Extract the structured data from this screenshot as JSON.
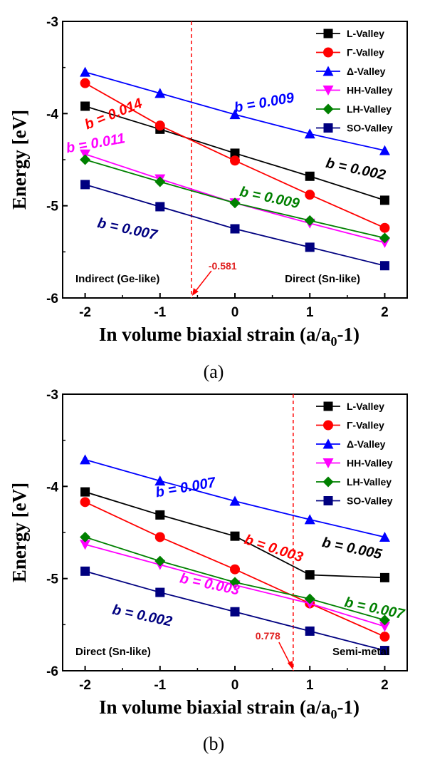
{
  "chart_data": [
    {
      "type": "line",
      "caption": "(a)",
      "ylabel": "Energy [eV]",
      "xlabel_main": "In volume biaxial strain (a/a",
      "xlabel_sub": "0",
      "xlabel_tail": "-1)",
      "xlim": [
        -2.3,
        2.3
      ],
      "ylim": [
        -6,
        -3
      ],
      "x_ticks": [
        -2,
        -1,
        0,
        1,
        2
      ],
      "x_tick_labels": [
        "-2",
        "-1",
        "0",
        "1",
        "2"
      ],
      "y_ticks": [
        -6,
        -5,
        -4,
        -3
      ],
      "y_tick_labels": [
        "-6",
        "-5",
        "-4",
        "-3"
      ],
      "legend_position": "top-right",
      "x": [
        -2,
        -1,
        0,
        1,
        2
      ],
      "series": [
        {
          "name": "L-Valley",
          "color": "#000000",
          "marker": "square",
          "values": [
            -3.92,
            -4.17,
            -4.43,
            -4.68,
            -4.94
          ]
        },
        {
          "name": "Γ-Valley",
          "color": "#ff0000",
          "marker": "circle",
          "values": [
            -3.67,
            -4.13,
            -4.51,
            -4.88,
            -5.24
          ]
        },
        {
          "name": "Δ-Valley",
          "color": "#0000ff",
          "marker": "triangle-up",
          "values": [
            -3.55,
            -3.78,
            -4.01,
            -4.22,
            -4.4
          ]
        },
        {
          "name": "HH-Valley",
          "color": "#ff00ff",
          "marker": "triangle-down",
          "values": [
            -4.44,
            -4.71,
            -4.97,
            -5.19,
            -5.4
          ]
        },
        {
          "name": "LH-Valley",
          "color": "#008000",
          "marker": "diamond",
          "values": [
            -4.5,
            -4.74,
            -4.97,
            -5.16,
            -5.35
          ]
        },
        {
          "name": "SO-Valley",
          "color": "#000080",
          "marker": "square",
          "values": [
            -4.77,
            -5.01,
            -5.25,
            -5.45,
            -5.65
          ]
        }
      ],
      "annotations": [
        {
          "text": "b = 0.014",
          "color": "#ff0000",
          "x": -1.6,
          "y": -4.05,
          "rotate": -22
        },
        {
          "text": "b = 0.009",
          "color": "#0000ff",
          "x": 0.4,
          "y": -3.93,
          "rotate": -10
        },
        {
          "text": "b = 0.002",
          "color": "#000000",
          "x": 1.6,
          "y": -4.65,
          "rotate": 12
        },
        {
          "text": "b = 0.011",
          "color": "#ff00ff",
          "x": -1.85,
          "y": -4.37,
          "rotate": -10
        },
        {
          "text": "b = 0.009",
          "color": "#008000",
          "x": 0.45,
          "y": -4.96,
          "rotate": 12
        },
        {
          "text": "b = 0.007",
          "color": "#000080",
          "x": -1.45,
          "y": -5.3,
          "rotate": 12
        }
      ],
      "divider_x": -0.581,
      "divider_label": "-0.581",
      "region_left": "Indirect (Ge-like)",
      "region_right": "Direct (Sn-like)"
    },
    {
      "type": "line",
      "caption": "(b)",
      "ylabel": "Energy [eV]",
      "xlabel_main": "In volume biaxial strain (a/a",
      "xlabel_sub": "0",
      "xlabel_tail": "-1)",
      "xlim": [
        -2.3,
        2.3
      ],
      "ylim": [
        -6,
        -3
      ],
      "x_ticks": [
        -2,
        -1,
        0,
        1,
        2
      ],
      "x_tick_labels": [
        "-2",
        "-1",
        "0",
        "1",
        "2"
      ],
      "y_ticks": [
        -6,
        -5,
        -4,
        -3
      ],
      "y_tick_labels": [
        "-6",
        "-5",
        "-4",
        "-3"
      ],
      "legend_position": "top-right",
      "x": [
        -2,
        -1,
        0,
        1,
        2
      ],
      "series": [
        {
          "name": "L-Valley",
          "color": "#000000",
          "marker": "square",
          "values": [
            -4.06,
            -4.31,
            -4.54,
            -4.96,
            -4.99
          ]
        },
        {
          "name": "Γ-Valley",
          "color": "#ff0000",
          "marker": "circle",
          "values": [
            -4.17,
            -4.55,
            -4.9,
            -5.27,
            -5.63
          ]
        },
        {
          "name": "Δ-Valley",
          "color": "#0000ff",
          "marker": "triangle-up",
          "values": [
            -3.71,
            -3.94,
            -4.16,
            -4.36,
            -4.55
          ]
        },
        {
          "name": "HH-Valley",
          "color": "#ff00ff",
          "marker": "triangle-down",
          "values": [
            -4.63,
            -4.85,
            -5.07,
            -5.27,
            -5.52
          ]
        },
        {
          "name": "LH-Valley",
          "color": "#008000",
          "marker": "diamond",
          "values": [
            -4.55,
            -4.81,
            -5.04,
            -5.22,
            -5.45
          ]
        },
        {
          "name": "SO-Valley",
          "color": "#000080",
          "marker": "square",
          "values": [
            -4.92,
            -5.15,
            -5.36,
            -5.57,
            -5.78
          ]
        }
      ],
      "annotations": [
        {
          "text": "b = 0.007",
          "color": "#0000ff",
          "x": -0.65,
          "y": -4.06,
          "rotate": -10
        },
        {
          "text": "b = 0.005",
          "color": "#000000",
          "x": 1.55,
          "y": -4.72,
          "rotate": 12
        },
        {
          "text": "b = 0.003",
          "color": "#ff0000",
          "x": 0.5,
          "y": -4.72,
          "rotate": 18
        },
        {
          "text": "b = 0.003",
          "color": "#ff00ff",
          "x": -0.35,
          "y": -5.11,
          "rotate": 12
        },
        {
          "text": "b = 0.007",
          "color": "#008000",
          "x": 1.85,
          "y": -5.37,
          "rotate": 12
        },
        {
          "text": "b = 0.002",
          "color": "#000080",
          "x": -1.25,
          "y": -5.45,
          "rotate": 12
        }
      ],
      "divider_x": 0.778,
      "divider_label": "0.778",
      "region_left": "Direct (Sn-like)",
      "region_right": "Semi-metal"
    }
  ]
}
